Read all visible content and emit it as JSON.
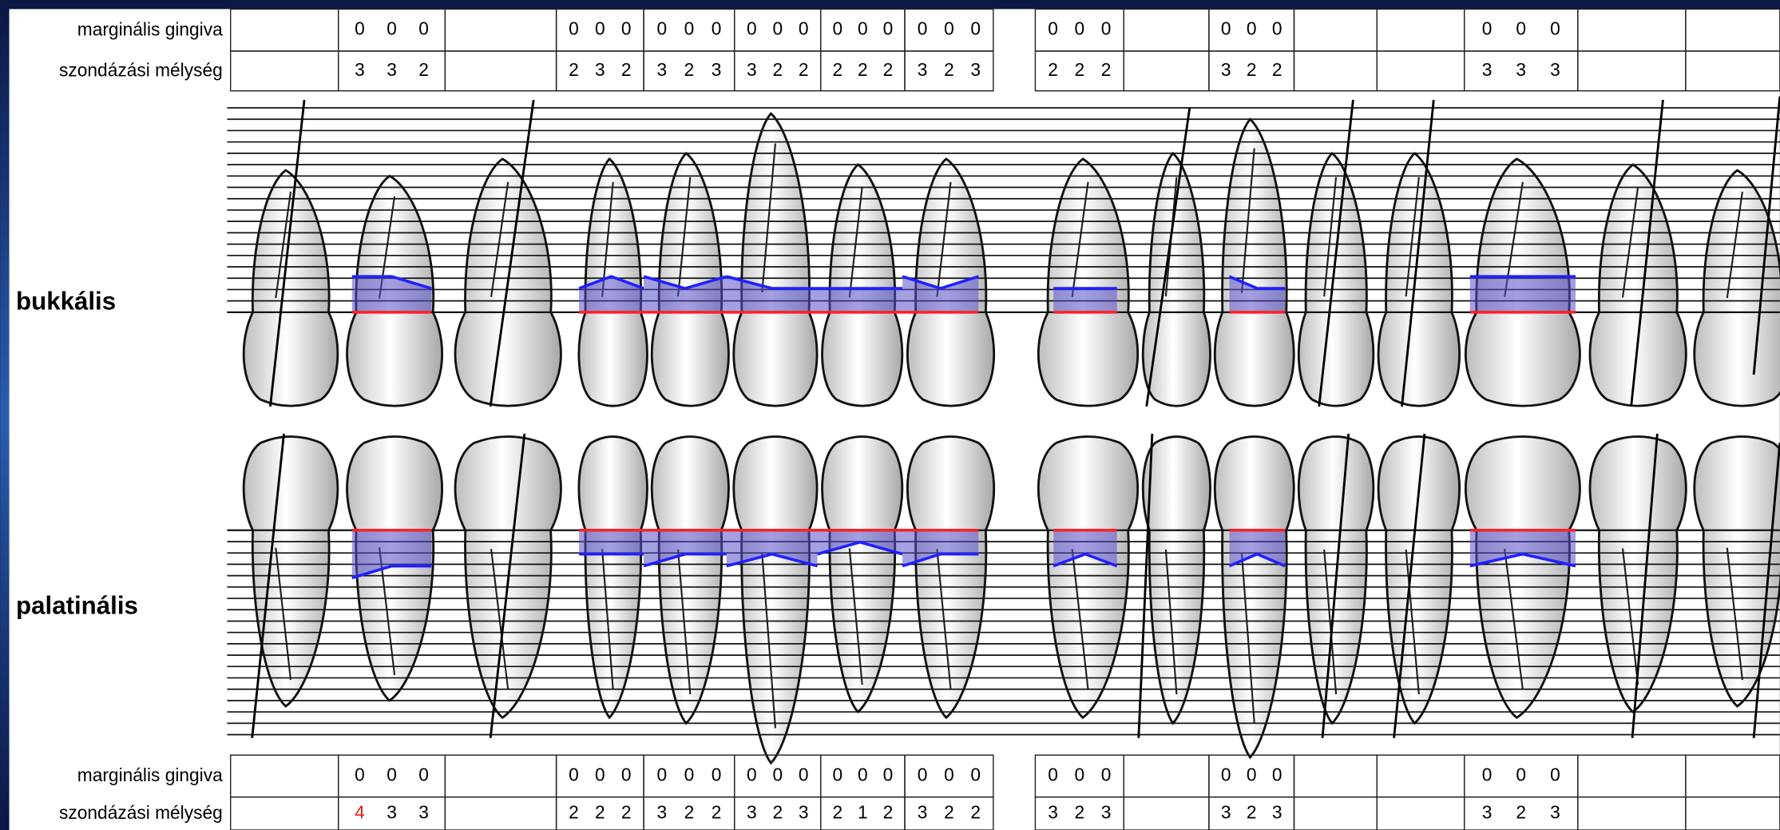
{
  "upper_table": {
    "labels": [
      "marginális gingiva",
      "szondázási mélység"
    ],
    "teeth": [
      null,
      {
        "gingiva": [
          0,
          0,
          0
        ],
        "depth": [
          3,
          3,
          2
        ]
      },
      null,
      {
        "gingiva": [
          0,
          0,
          0
        ],
        "depth": [
          2,
          3,
          2
        ]
      },
      {
        "gingiva": [
          0,
          0,
          0
        ],
        "depth": [
          3,
          2,
          3
        ]
      },
      {
        "gingiva": [
          0,
          0,
          0
        ],
        "depth": [
          3,
          2,
          2
        ]
      },
      {
        "gingiva": [
          0,
          0,
          0
        ],
        "depth": [
          2,
          2,
          2
        ]
      },
      {
        "gingiva": [
          0,
          0,
          0
        ],
        "depth": [
          3,
          2,
          3
        ]
      },
      {
        "gingiva": [
          0,
          0,
          0
        ],
        "depth": [
          2,
          2,
          2
        ]
      },
      null,
      {
        "gingiva": [
          0,
          0,
          0
        ],
        "depth": [
          3,
          2,
          2
        ]
      },
      null,
      null,
      {
        "gingiva": [
          0,
          0,
          0
        ],
        "depth": [
          3,
          3,
          3
        ]
      },
      null,
      null
    ]
  },
  "views": [
    "bukkális",
    "palatinális"
  ],
  "lower_table": {
    "labels": [
      "marginális gingiva",
      "szondázási mélység"
    ],
    "teeth": [
      null,
      {
        "gingiva": [
          0,
          0,
          0
        ],
        "depth": [
          4,
          3,
          3
        ],
        "depth_colors": [
          "#e02020",
          "#000000",
          "#000000"
        ]
      },
      null,
      {
        "gingiva": [
          0,
          0,
          0
        ],
        "depth": [
          2,
          2,
          2
        ]
      },
      {
        "gingiva": [
          0,
          0,
          0
        ],
        "depth": [
          3,
          2,
          2
        ]
      },
      {
        "gingiva": [
          0,
          0,
          0
        ],
        "depth": [
          3,
          2,
          3
        ]
      },
      {
        "gingiva": [
          0,
          0,
          0
        ],
        "depth": [
          2,
          1,
          2
        ]
      },
      {
        "gingiva": [
          0,
          0,
          0
        ],
        "depth": [
          3,
          2,
          2
        ]
      },
      {
        "gingiva": [
          0,
          0,
          0
        ],
        "depth": [
          3,
          2,
          3
        ]
      },
      null,
      {
        "gingiva": [
          0,
          0,
          0
        ],
        "depth": [
          3,
          2,
          3
        ]
      },
      null,
      null,
      {
        "gingiva": [
          0,
          0,
          0
        ],
        "depth": [
          3,
          2,
          3
        ]
      },
      null,
      null
    ]
  },
  "gingiva_color": "#ff2020",
  "pocket_color": "#2020ff",
  "pocket_fill": "#5a50c8"
}
